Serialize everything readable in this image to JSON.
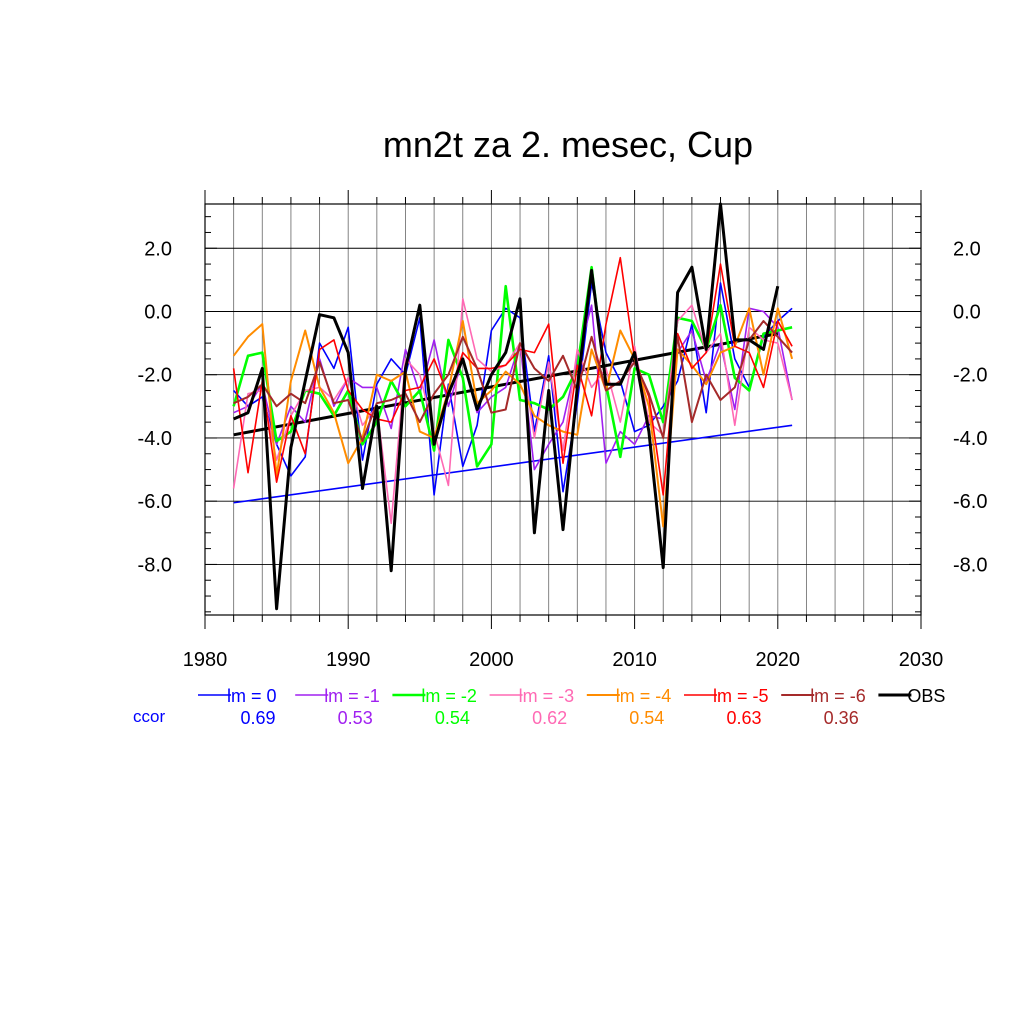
{
  "chart_data": {
    "type": "line",
    "title": "mn2t za 2. mesec, Cup",
    "xlim": [
      1980,
      2030
    ],
    "ylim": [
      -9.6,
      3.4
    ],
    "x_ticks": [
      1980,
      1990,
      2000,
      2010,
      2020,
      2030
    ],
    "y_ticks": [
      2.0,
      0.0,
      -2.0,
      -4.0,
      -6.0,
      -8.0
    ],
    "x_tick_labels": [
      "1980",
      "1990",
      "2000",
      "2010",
      "2020",
      "2030"
    ],
    "y_tick_labels": [
      "2.0",
      "0.0",
      "-2.0",
      "-4.0",
      "-6.0",
      "-8.0"
    ],
    "vertical_grid_step": 2,
    "grid": true,
    "legend_position": "bottom",
    "ccor_label": "ccor",
    "ccor_color": "#0000ff",
    "years": [
      1982,
      1983,
      1984,
      1985,
      1986,
      1987,
      1988,
      1989,
      1990,
      1991,
      1992,
      1993,
      1994,
      1995,
      1996,
      1997,
      1998,
      1999,
      2000,
      2001,
      2002,
      2003,
      2004,
      2005,
      2006,
      2007,
      2008,
      2009,
      2010,
      2011,
      2012,
      2013,
      2014,
      2015,
      2016,
      2017,
      2018,
      2019,
      2020,
      2021
    ],
    "series": [
      {
        "name": "lm = 0",
        "ccor": "0.69",
        "color": "#0000ff",
        "width": 1.6,
        "values": [
          -2.5,
          -3.0,
          -2.7,
          -4.2,
          -5.2,
          -4.6,
          -1.0,
          -1.8,
          -0.5,
          -4.7,
          -2.3,
          -1.5,
          -2.0,
          -0.2,
          -5.8,
          -2.3,
          -4.9,
          -3.6,
          -0.6,
          0.1,
          -0.2,
          -3.8,
          -1.4,
          -5.7,
          -2.9,
          0.9,
          -1.3,
          -2.2,
          -3.8,
          -3.6,
          -3.0,
          -2.2,
          -0.4,
          -3.2,
          0.9,
          -1.5,
          -2.4,
          -0.8,
          -0.3,
          0.1
        ]
      },
      {
        "name": "lm = -1",
        "ccor": "0.53",
        "color": "#a020f0",
        "width": 1.6,
        "values": [
          -3.2,
          -3.0,
          -2.3,
          -4.2,
          -3.0,
          -3.5,
          -1.5,
          -3.0,
          -2.1,
          -2.4,
          -2.4,
          -3.7,
          -1.2,
          -2.6,
          -0.9,
          -3.0,
          -1.5,
          -3.2,
          -2.7,
          -2.4,
          -1.0,
          -5.0,
          -4.2,
          -3.5,
          -1.5,
          0.2,
          -4.8,
          -3.8,
          -4.2,
          -3.3,
          -3.4,
          -1.3,
          -0.6,
          -2.2,
          -1.0,
          -3.1,
          0.1,
          0.0,
          -0.5,
          -2.8
        ]
      },
      {
        "name": "lm = -2",
        "ccor": "0.54",
        "color": "#00ff00",
        "width": 2.6,
        "values": [
          -3.0,
          -1.4,
          -1.3,
          -4.1,
          -3.8,
          -2.5,
          -2.6,
          -3.3,
          -2.5,
          -4.2,
          -3.5,
          -2.2,
          -3.0,
          -2.5,
          -4.4,
          -0.9,
          -2.1,
          -4.9,
          -4.2,
          0.8,
          -2.8,
          -2.9,
          -3.1,
          -2.7,
          -1.8,
          1.4,
          -2.3,
          -4.6,
          -1.8,
          -2.0,
          -3.5,
          -0.2,
          -0.3,
          -1.2,
          0.2,
          -2.1,
          -2.5,
          -0.7,
          -0.6,
          -0.5
        ]
      },
      {
        "name": "lm = -3",
        "ccor": "0.62",
        "color": "#ff69b4",
        "width": 1.6,
        "values": [
          -5.6,
          -2.6,
          -2.5,
          -4.7,
          -3.3,
          -2.5,
          -2.4,
          -2.8,
          -2.1,
          -3.6,
          -3.0,
          -6.7,
          -1.5,
          -2.0,
          -3.8,
          -5.5,
          0.4,
          -1.5,
          -1.9,
          -1.7,
          -1.0,
          -4.0,
          -1.6,
          -4.4,
          -1.2,
          -2.4,
          -1.8,
          -3.5,
          -1.1,
          -3.5,
          -3.9,
          -0.3,
          0.2,
          -1.3,
          -0.7,
          -3.6,
          -0.5,
          -0.9,
          -1.0,
          -2.8
        ]
      },
      {
        "name": "lm = -4",
        "ccor": "0.54",
        "color": "#ff8c00",
        "width": 2.0,
        "values": [
          -1.4,
          -0.8,
          -0.4,
          -5.2,
          -2.2,
          -0.6,
          -2.4,
          -3.2,
          -4.8,
          -4.0,
          -2.0,
          -2.2,
          -1.9,
          -3.8,
          -4.0,
          -2.5,
          -0.3,
          -2.9,
          -2.5,
          -1.9,
          -2.3,
          -3.3,
          -3.6,
          -3.8,
          -3.9,
          -1.2,
          -2.5,
          -0.6,
          -1.5,
          -3.0,
          -6.8,
          -1.2,
          -1.7,
          -2.3,
          -1.3,
          -1.1,
          0.1,
          -2.0,
          0.1,
          -1.5
        ]
      },
      {
        "name": "lm = -5",
        "ccor": "0.63",
        "color": "#ff0000",
        "width": 1.6,
        "values": [
          -1.8,
          -5.1,
          -2.2,
          -5.4,
          -3.3,
          -4.5,
          -1.2,
          -0.9,
          -2.5,
          -3.1,
          -3.4,
          -3.5,
          -2.5,
          -2.4,
          -1.5,
          -2.7,
          -1.3,
          -1.8,
          -1.8,
          -1.7,
          -1.2,
          -1.3,
          -0.4,
          -4.8,
          -1.7,
          -3.3,
          -0.4,
          1.7,
          -1.5,
          -2.7,
          -5.8,
          -0.7,
          -1.8,
          -1.3,
          1.5,
          -1.1,
          -1.3,
          -2.4,
          -0.3,
          -1.1
        ]
      },
      {
        "name": "lm = -6",
        "ccor": "0.36",
        "color": "#a52a2a",
        "width": 2.0,
        "values": [
          -2.9,
          -2.7,
          -2.3,
          -3.0,
          -2.6,
          -2.9,
          -1.6,
          -2.9,
          -2.8,
          -4.1,
          -2.9,
          -2.8,
          -2.6,
          -3.5,
          -2.6,
          -2.0,
          -0.8,
          -1.8,
          -3.2,
          -3.1,
          -1.0,
          -1.8,
          -2.2,
          -1.4,
          -2.5,
          -0.8,
          -2.5,
          -2.2,
          -1.6,
          -2.6,
          -4.0,
          -0.8,
          -3.5,
          -2.0,
          -2.8,
          -2.4,
          -0.9,
          -0.3,
          -0.8,
          -1.3
        ]
      },
      {
        "name": "OBS",
        "ccor": "",
        "color": "#000000",
        "width": 3.0,
        "values": [
          -3.4,
          -3.2,
          -1.8,
          -9.4,
          -4.3,
          -2.2,
          -0.1,
          -0.2,
          -1.3,
          -5.6,
          -3.0,
          -8.2,
          -1.8,
          0.2,
          -4.2,
          -2.6,
          -1.5,
          -3.1,
          -2.0,
          -1.3,
          0.4,
          -7.0,
          -2.5,
          -6.9,
          -2.4,
          1.3,
          -2.3,
          -2.3,
          -1.3,
          -3.8,
          -8.1,
          0.6,
          1.4,
          -1.2,
          3.4,
          -0.9,
          -0.9,
          -1.2,
          0.8,
          null
        ]
      }
    ],
    "trend_lines": [
      {
        "color": "#0000ff",
        "width": 1.6,
        "x": [
          1982,
          2021
        ],
        "y": [
          -6.05,
          -3.6
        ]
      },
      {
        "color": "#000000",
        "width": 3.0,
        "x": [
          1982,
          2020
        ],
        "y": [
          -3.9,
          -0.7
        ]
      }
    ]
  }
}
